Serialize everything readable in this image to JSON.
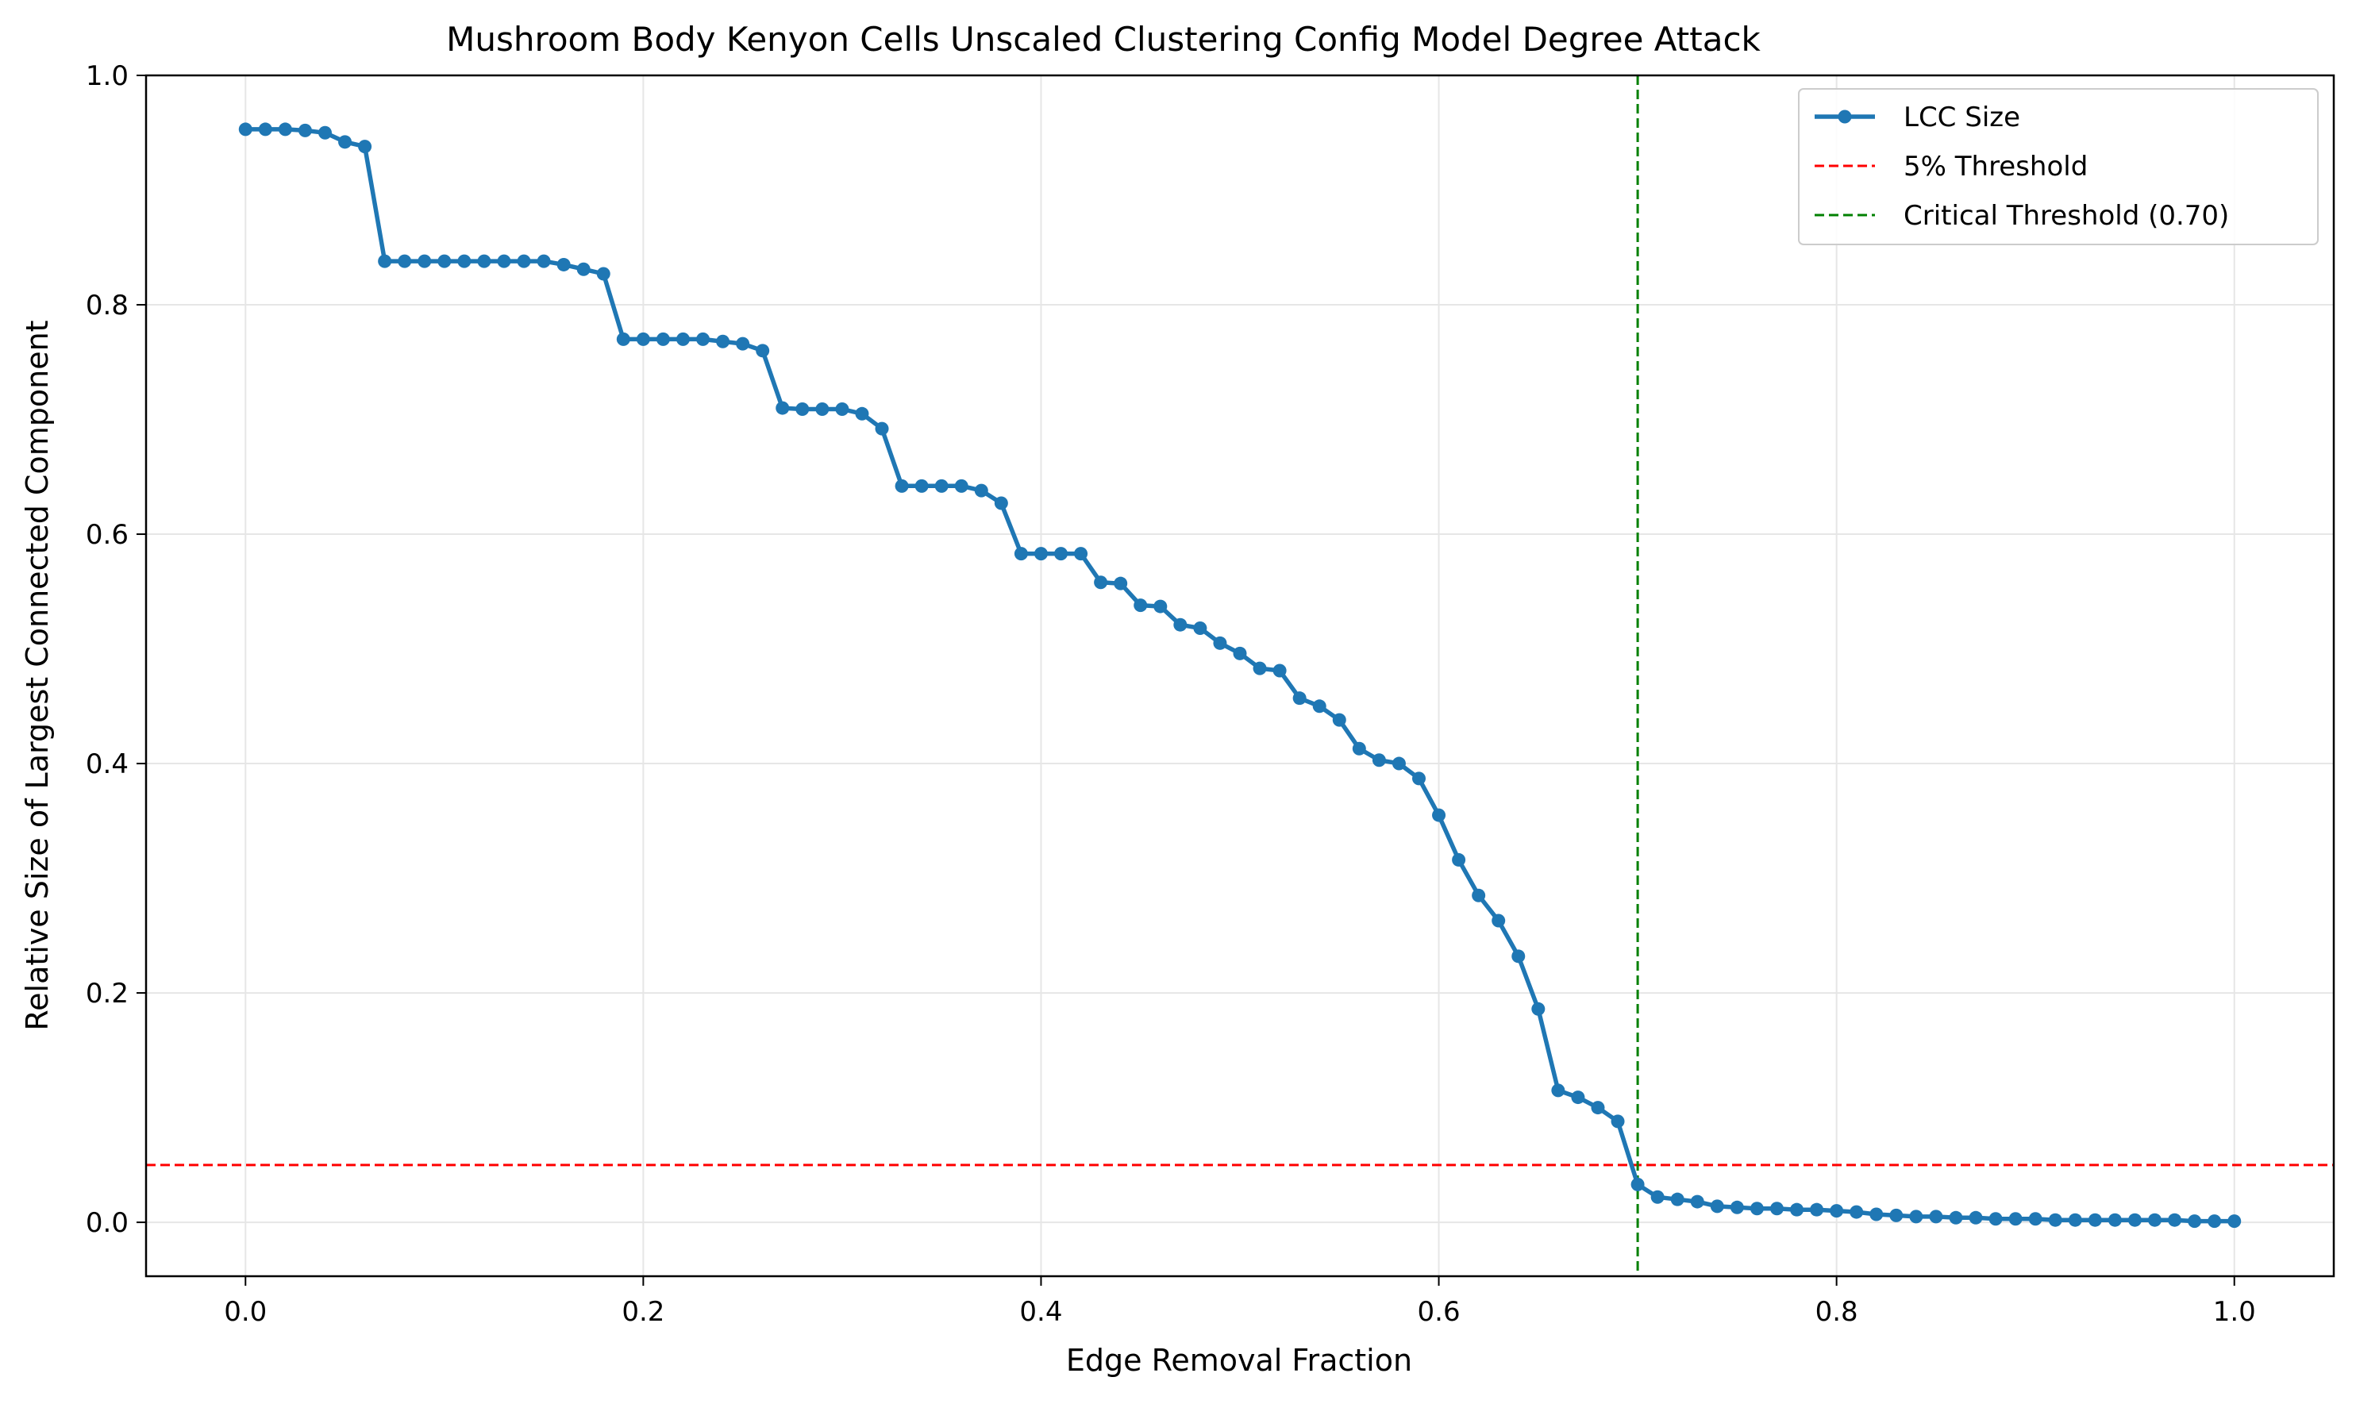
{
  "chart_data": {
    "type": "line",
    "title": "Mushroom Body Kenyon Cells Unscaled Clustering Config Model Degree Attack",
    "xlabel": "Edge Removal Fraction",
    "ylabel": "Relative Size of Largest Connected Component",
    "xlim": [
      -0.05,
      1.05
    ],
    "ylim": [
      -0.047,
      1.0
    ],
    "xticks": [
      0.0,
      0.2,
      0.4,
      0.6,
      0.8,
      1.0
    ],
    "xtick_labels": [
      "0.0",
      "0.2",
      "0.4",
      "0.6",
      "0.8",
      "1.0"
    ],
    "yticks": [
      0.0,
      0.2,
      0.4,
      0.6,
      0.8,
      1.0
    ],
    "ytick_labels": [
      "0.0",
      "0.2",
      "0.4",
      "0.6",
      "0.8",
      "1.0"
    ],
    "grid": true,
    "legend_position": "top-right",
    "series": [
      {
        "name": "LCC Size",
        "color": "#1f77b4",
        "marker": "circle",
        "x": [
          0.0,
          0.01,
          0.02,
          0.03,
          0.04,
          0.05,
          0.06,
          0.07,
          0.08,
          0.09,
          0.1,
          0.11,
          0.12,
          0.13,
          0.14,
          0.15,
          0.16,
          0.17,
          0.18,
          0.19,
          0.2,
          0.21,
          0.22,
          0.23,
          0.24,
          0.25,
          0.26,
          0.27,
          0.28,
          0.29,
          0.3,
          0.31,
          0.32,
          0.33,
          0.34,
          0.35,
          0.36,
          0.37,
          0.38,
          0.39,
          0.4,
          0.41,
          0.42,
          0.43,
          0.44,
          0.45,
          0.46,
          0.47,
          0.48,
          0.49,
          0.5,
          0.51,
          0.52,
          0.53,
          0.54,
          0.55,
          0.56,
          0.57,
          0.58,
          0.59,
          0.6,
          0.61,
          0.62,
          0.63,
          0.64,
          0.65,
          0.66,
          0.67,
          0.68,
          0.69,
          0.7,
          0.71,
          0.72,
          0.73,
          0.74,
          0.75,
          0.76,
          0.77,
          0.78,
          0.79,
          0.8,
          0.81,
          0.82,
          0.83,
          0.84,
          0.85,
          0.86,
          0.87,
          0.88,
          0.89,
          0.9,
          0.91,
          0.92,
          0.93,
          0.94,
          0.95,
          0.96,
          0.97,
          0.98,
          0.99,
          1.0
        ],
        "y": [
          0.953,
          0.953,
          0.953,
          0.952,
          0.95,
          0.942,
          0.938,
          0.838,
          0.838,
          0.838,
          0.838,
          0.838,
          0.838,
          0.838,
          0.838,
          0.838,
          0.835,
          0.831,
          0.827,
          0.77,
          0.77,
          0.77,
          0.77,
          0.77,
          0.768,
          0.766,
          0.76,
          0.71,
          0.709,
          0.709,
          0.709,
          0.705,
          0.692,
          0.642,
          0.642,
          0.642,
          0.642,
          0.638,
          0.627,
          0.583,
          0.583,
          0.583,
          0.583,
          0.558,
          0.557,
          0.538,
          0.537,
          0.521,
          0.518,
          0.505,
          0.496,
          0.483,
          0.481,
          0.457,
          0.45,
          0.438,
          0.413,
          0.403,
          0.4,
          0.387,
          0.355,
          0.316,
          0.285,
          0.263,
          0.232,
          0.186,
          0.115,
          0.109,
          0.1,
          0.088,
          0.033,
          0.022,
          0.02,
          0.018,
          0.014,
          0.013,
          0.012,
          0.012,
          0.011,
          0.011,
          0.01,
          0.009,
          0.007,
          0.006,
          0.005,
          0.005,
          0.004,
          0.004,
          0.003,
          0.003,
          0.003,
          0.002,
          0.002,
          0.002,
          0.002,
          0.002,
          0.002,
          0.002,
          0.001,
          0.001,
          0.001
        ]
      }
    ],
    "reference_lines": [
      {
        "name": "5% Threshold",
        "orientation": "horizontal",
        "value": 0.05,
        "color": "#ff0000",
        "style": "dashed"
      },
      {
        "name": "Critical Threshold (0.70)",
        "orientation": "vertical",
        "value": 0.7,
        "color": "#008000",
        "style": "dashed"
      }
    ]
  }
}
